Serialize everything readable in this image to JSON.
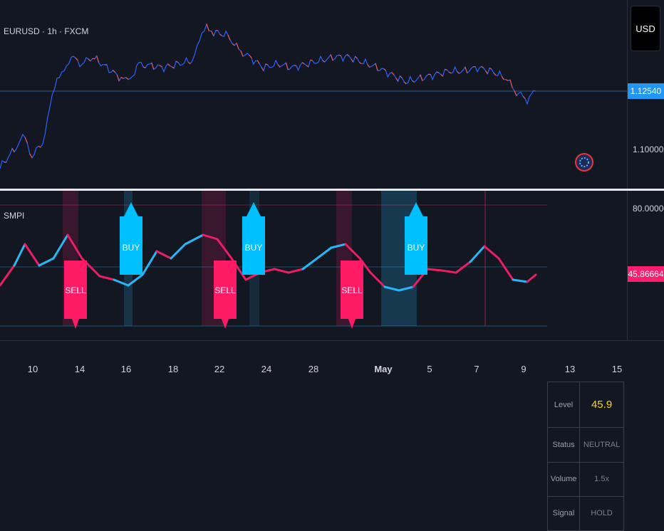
{
  "header": {
    "symbol": "EURUSD · 1h · FXCM"
  },
  "price_scale": {
    "currency_button": "USD",
    "current_price": "1.12540",
    "labels": [
      "1.10000"
    ],
    "accent_color": "#2196f3"
  },
  "indicator": {
    "name": "SMPI",
    "scale_top": "80.00000",
    "current_value": "45.86664",
    "value_color": "#ff1e6e",
    "signals": [
      {
        "type": "buy",
        "label": "BUY"
      },
      {
        "type": "buy",
        "label": "BUY"
      },
      {
        "type": "buy",
        "label": "BUY"
      },
      {
        "type": "sell",
        "label": "SELL"
      },
      {
        "type": "sell",
        "label": "SELL"
      },
      {
        "type": "sell",
        "label": "SELL"
      }
    ],
    "stats_table": [
      {
        "label": "Level",
        "value": "45.9"
      },
      {
        "label": "Status",
        "value": "NEUTRAL"
      },
      {
        "label": "Volume",
        "value": "1.5x"
      },
      {
        "label": "Signal",
        "value": "HOLD"
      }
    ],
    "colors": {
      "bull": "#29b6f6",
      "bear": "#e91e63",
      "buy_flag": "#00bfff",
      "sell_flag": "#ff1a66"
    }
  },
  "time_axis": {
    "ticks": [
      "10",
      "14",
      "16",
      "18",
      "22",
      "24",
      "28",
      "May",
      "5",
      "7",
      "9",
      "13",
      "15"
    ]
  },
  "logo": {
    "icon": "ideas-badge-icon"
  }
}
